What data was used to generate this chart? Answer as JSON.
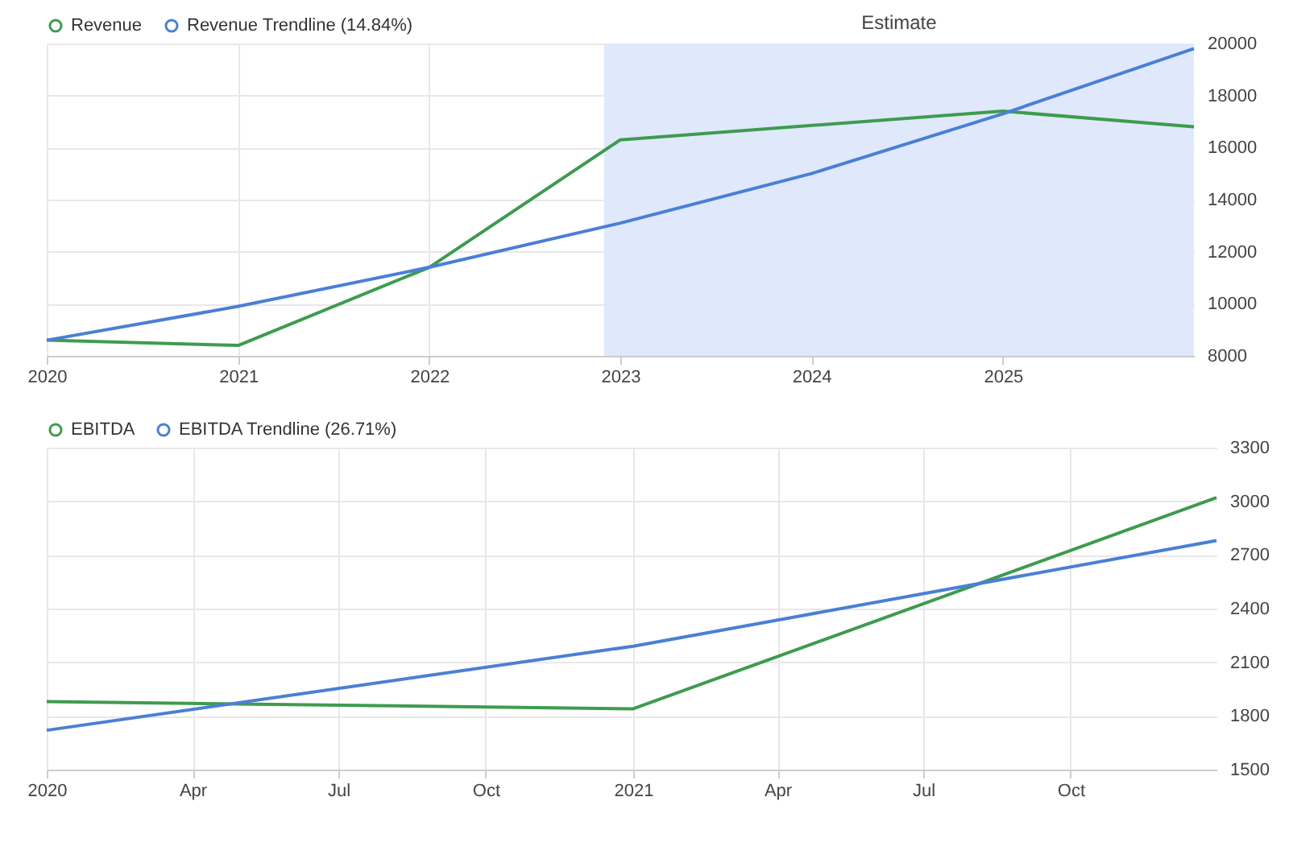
{
  "chart_data": [
    {
      "type": "line",
      "x": [
        "2020",
        "2021",
        "2022",
        "2023",
        "2024",
        "2025",
        "2026"
      ],
      "series": [
        {
          "name": "Revenue",
          "color": "#3e9b4f",
          "x": [
            "2020",
            "2021",
            "2022",
            "2023",
            "2025",
            "2026"
          ],
          "values": [
            8600,
            8400,
            11400,
            16300,
            17400,
            16800
          ]
        },
        {
          "name": "Revenue Trendline (14.84%)",
          "color": "#4a7fd6",
          "values": [
            8600,
            9900,
            11400,
            13100,
            15000,
            17300,
            19800
          ]
        }
      ],
      "xlim": [
        "2020",
        "2026"
      ],
      "xticks": [
        {
          "value": "2020",
          "label": "2020"
        },
        {
          "value": "2021",
          "label": "2021"
        },
        {
          "value": "2022",
          "label": "2022"
        },
        {
          "value": "2023",
          "label": "2023"
        },
        {
          "value": "2024",
          "label": "2024"
        },
        {
          "value": "2025",
          "label": "2025"
        }
      ],
      "ylim": [
        8000,
        20000
      ],
      "yticks": [
        8000,
        10000,
        12000,
        14000,
        16000,
        18000,
        20000
      ],
      "bands": [
        {
          "axis": "x",
          "from": "2022-12",
          "to": "2026",
          "label": "Estimate",
          "color": "#dfe9fb"
        }
      ],
      "grid": true,
      "legend": "top left"
    },
    {
      "type": "line",
      "x": [
        "2020",
        "2021",
        "2021-12-31"
      ],
      "series": [
        {
          "name": "EBITDA",
          "color": "#3e9b4f",
          "values": [
            1880,
            1840,
            3020
          ]
        },
        {
          "name": "EBITDA Trendline (26.71%)",
          "color": "#4a7fd6",
          "values": [
            1720,
            2190,
            2780
          ]
        }
      ],
      "xlim": [
        "2020",
        "2021-12-31"
      ],
      "xticks": [
        {
          "value": "2020",
          "label": "2020"
        },
        {
          "value": "2020-04",
          "label": "Apr"
        },
        {
          "value": "2020-07",
          "label": "Jul"
        },
        {
          "value": "2020-10",
          "label": "Oct"
        },
        {
          "value": "2021",
          "label": "2021"
        },
        {
          "value": "2021-04",
          "label": "Apr"
        },
        {
          "value": "2021-07",
          "label": "Jul"
        },
        {
          "value": "2021-10",
          "label": "Oct"
        }
      ],
      "ylim": [
        1500,
        3300
      ],
      "yticks": [
        1500,
        1800,
        2100,
        2400,
        2700,
        3000,
        3300
      ],
      "grid": true,
      "legend": "top left"
    }
  ]
}
